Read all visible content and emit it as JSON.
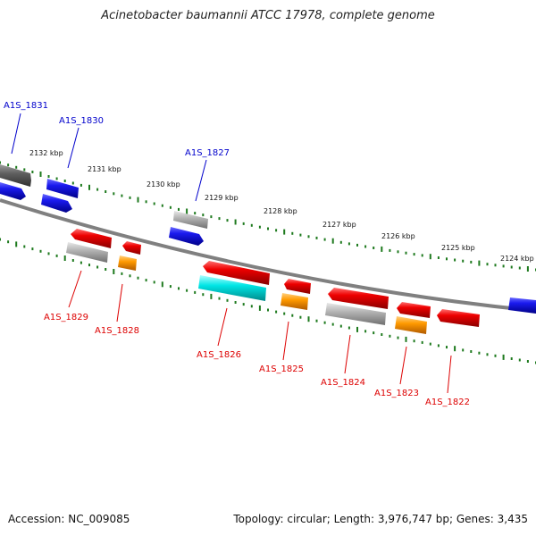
{
  "title": "Acinetobacter baumannii ATCC 17978, complete genome",
  "footer": {
    "accession": "Accession: NC_009085",
    "summary": "Topology: circular; Length: 3,976,747 bp; Genes: 3,435"
  },
  "colors": {
    "backbone": "#808080",
    "tick": "#1e7a1e",
    "forward_label": "#0000cc",
    "reverse_label": "#dd0000",
    "blue": "#1010e0",
    "red": "#e00000",
    "gray": "#b0b0b0",
    "orange": "#ff9900",
    "cyan": "#00e5e5",
    "darkgray": "#606060"
  },
  "scale_labels": [
    "2132 kbp",
    "2131 kbp",
    "2130 kbp",
    "2129 kbp",
    "2128 kbp",
    "2127 kbp",
    "2126 kbp",
    "2125 kbp",
    "2124 kbp"
  ],
  "genes": {
    "forward": [
      "A1S_1831",
      "A1S_1830",
      "A1S_1827"
    ],
    "reverse": [
      "A1S_1829",
      "A1S_1828",
      "A1S_1826",
      "A1S_1825",
      "A1S_1824",
      "A1S_1823",
      "A1S_1822"
    ]
  }
}
